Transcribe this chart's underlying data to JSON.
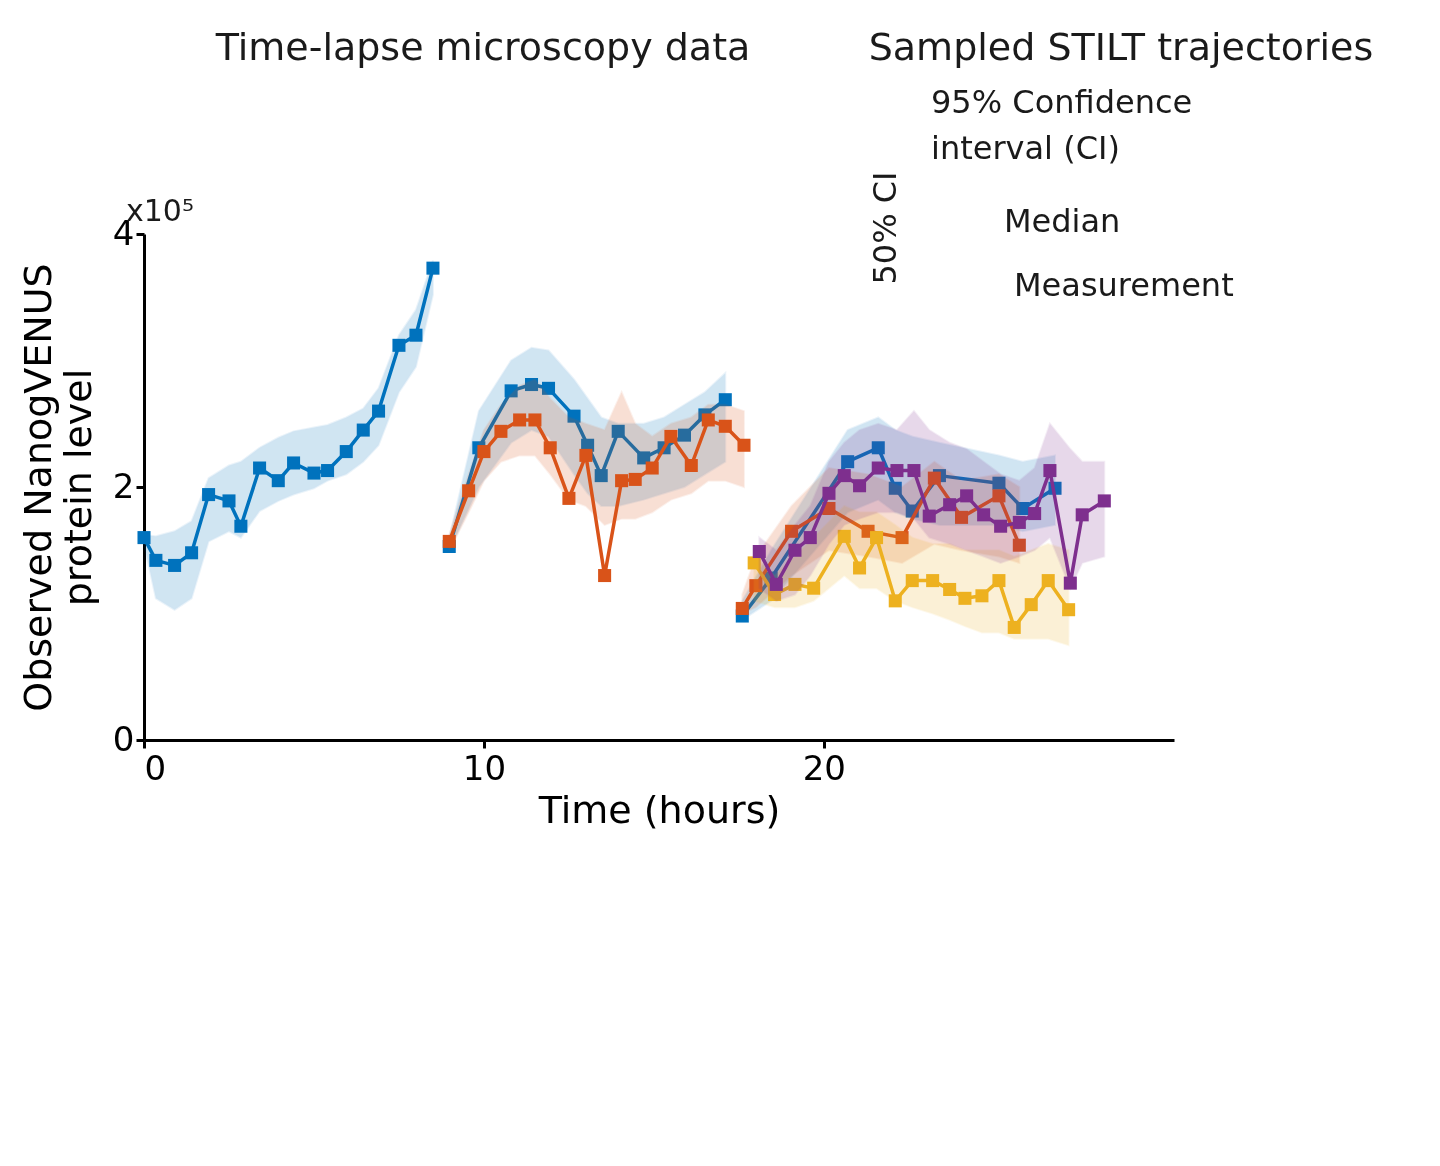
{
  "chart_data": {
    "type": "line",
    "xlabel": "Time (hours)",
    "ylabel": "Observed NanogVENUS protein level",
    "xlim": [
      0,
      30.3
    ],
    "ylim": [
      0,
      4
    ],
    "xticks": [
      0,
      10,
      20
    ],
    "yticks": [
      0,
      2,
      4
    ],
    "grid": false,
    "marker": "square",
    "line_style": "solid",
    "annotations": [
      "x10⁵",
      "Time-lapse microscopy data",
      "Sampled STILT trajectories",
      "95% Confidence interval (CI)",
      "50% CI",
      "Median",
      "Measurement"
    ],
    "series": [
      {
        "color": "#0072bd",
        "x": [
          0,
          0.35,
          0.9,
          1.4,
          1.9,
          2.5,
          2.85,
          3.4,
          3.95,
          4.4,
          5.0,
          5.4,
          5.95,
          6.45,
          6.9,
          7.5,
          8.0,
          8.5
        ],
        "values": [
          1.6,
          1.42,
          1.38,
          1.48,
          1.94,
          1.89,
          1.69,
          2.15,
          2.05,
          2.19,
          2.11,
          2.13,
          2.28,
          2.45,
          2.6,
          3.12,
          3.2,
          3.73
        ],
        "upper": [
          1.62,
          1.61,
          1.65,
          1.73,
          2.07,
          2.17,
          2.2,
          2.31,
          2.39,
          2.44,
          2.47,
          2.49,
          2.55,
          2.62,
          2.78,
          3.2,
          3.4,
          3.79
        ],
        "lower": [
          1.55,
          1.12,
          1.03,
          1.12,
          1.57,
          1.65,
          1.6,
          1.81,
          1.89,
          1.94,
          1.99,
          2.05,
          2.1,
          2.2,
          2.33,
          2.75,
          2.95,
          3.52
        ]
      },
      {
        "color": "#0072bd",
        "x": [
          8.98,
          9.85,
          10.8,
          11.4,
          11.9,
          12.65,
          13.05,
          13.45,
          13.95,
          14.7,
          15.3,
          15.9,
          16.5,
          17.1
        ],
        "values": [
          1.53,
          2.31,
          2.76,
          2.81,
          2.78,
          2.56,
          2.33,
          2.09,
          2.44,
          2.23,
          2.31,
          2.41,
          2.57,
          2.69
        ],
        "upper": [
          1.6,
          2.6,
          3.0,
          3.1,
          3.08,
          2.85,
          2.7,
          2.55,
          2.5,
          2.5,
          2.55,
          2.65,
          2.75,
          2.9
        ],
        "lower": [
          1.5,
          2.0,
          2.35,
          2.45,
          2.4,
          2.1,
          1.95,
          1.85,
          1.85,
          1.9,
          1.95,
          2.0,
          2.1,
          2.2
        ]
      },
      {
        "color": "#d95319",
        "x": [
          8.98,
          9.55,
          10.0,
          10.5,
          11.05,
          11.5,
          11.95,
          12.5,
          13.0,
          13.55,
          14.05,
          14.45,
          14.95,
          15.5,
          16.1,
          16.6,
          17.1,
          17.65
        ],
        "values": [
          1.57,
          1.97,
          2.28,
          2.44,
          2.53,
          2.53,
          2.31,
          1.91,
          2.25,
          1.3,
          2.05,
          2.06,
          2.15,
          2.4,
          2.17,
          2.53,
          2.48,
          2.33
        ],
        "upper": [
          1.62,
          2.1,
          2.45,
          2.65,
          2.8,
          2.85,
          2.7,
          2.55,
          2.5,
          2.45,
          2.75,
          2.5,
          2.4,
          2.5,
          2.55,
          2.65,
          2.65,
          2.6
        ],
        "lower": [
          1.5,
          1.8,
          2.05,
          2.2,
          2.25,
          2.25,
          2.1,
          1.9,
          1.85,
          1.7,
          1.75,
          1.75,
          1.8,
          1.9,
          1.95,
          2.05,
          2.05,
          2.0
        ]
      },
      {
        "color": "#0072bd",
        "x": [
          17.6,
          18.45,
          20.7,
          21.6,
          22.1,
          22.6,
          23.4,
          25.15,
          25.85,
          26.8
        ],
        "values": [
          0.98,
          1.28,
          2.2,
          2.31,
          1.99,
          1.81,
          2.09,
          2.03,
          1.83,
          1.99
        ],
        "upper": [
          1.1,
          1.5,
          2.45,
          2.55,
          2.45,
          2.4,
          2.35,
          2.25,
          2.2,
          2.25
        ],
        "lower": [
          0.95,
          1.1,
          1.8,
          1.9,
          1.8,
          1.75,
          1.7,
          1.7,
          1.65,
          1.7
        ]
      },
      {
        "color": "#d95319",
        "x": [
          17.6,
          18.0,
          19.05,
          20.15,
          21.3,
          22.3,
          23.25,
          24.05,
          25.15,
          25.75
        ],
        "values": [
          1.04,
          1.22,
          1.65,
          1.83,
          1.65,
          1.6,
          2.07,
          1.76,
          1.93,
          1.54
        ],
        "upper": [
          1.15,
          1.45,
          1.85,
          2.15,
          2.1,
          2.0,
          2.2,
          2.05,
          2.1,
          2.0
        ],
        "lower": [
          1.0,
          1.05,
          1.3,
          1.5,
          1.45,
          1.4,
          1.55,
          1.5,
          1.45,
          1.4
        ]
      },
      {
        "color": "#edb120",
        "x": [
          17.95,
          18.55,
          19.15,
          19.7,
          20.6,
          21.05,
          21.55,
          22.1,
          22.6,
          23.2,
          23.7,
          24.15,
          24.65,
          25.15,
          25.6,
          26.1,
          26.6,
          27.2
        ],
        "values": [
          1.4,
          1.15,
          1.23,
          1.2,
          1.61,
          1.36,
          1.6,
          1.1,
          1.26,
          1.26,
          1.19,
          1.12,
          1.14,
          1.26,
          0.89,
          1.07,
          1.26,
          1.03
        ],
        "upper": [
          1.45,
          1.3,
          1.45,
          1.6,
          1.85,
          1.8,
          1.8,
          1.7,
          1.6,
          1.55,
          1.55,
          1.5,
          1.5,
          1.5,
          1.45,
          1.5,
          1.55,
          1.5
        ],
        "lower": [
          1.1,
          1.05,
          1.05,
          1.1,
          1.3,
          1.2,
          1.2,
          1.1,
          1.05,
          1.0,
          0.95,
          0.9,
          0.85,
          0.85,
          0.8,
          0.8,
          0.8,
          0.75
        ]
      },
      {
        "color": "#7e2f8e",
        "x": [
          18.1,
          18.6,
          19.15,
          19.6,
          20.15,
          20.6,
          21.05,
          21.6,
          22.15,
          22.65,
          23.1,
          23.7,
          24.2,
          24.7,
          25.2,
          25.75,
          26.2,
          26.65,
          27.25,
          27.6,
          28.25
        ],
        "values": [
          1.49,
          1.23,
          1.5,
          1.6,
          1.95,
          2.09,
          2.01,
          2.15,
          2.13,
          2.13,
          1.77,
          1.86,
          1.93,
          1.78,
          1.69,
          1.72,
          1.79,
          2.13,
          1.24,
          1.78,
          1.89
        ],
        "upper": [
          1.6,
          1.5,
          1.7,
          1.85,
          2.2,
          2.35,
          2.45,
          2.5,
          2.45,
          2.6,
          2.45,
          2.35,
          2.3,
          2.2,
          2.1,
          2.05,
          2.15,
          2.5,
          2.3,
          2.2,
          2.2
        ],
        "lower": [
          1.2,
          1.1,
          1.15,
          1.3,
          1.55,
          1.7,
          1.75,
          1.8,
          1.8,
          1.75,
          1.6,
          1.55,
          1.5,
          1.45,
          1.4,
          1.45,
          1.5,
          1.6,
          1.2,
          1.4,
          1.45
        ]
      }
    ]
  }
}
